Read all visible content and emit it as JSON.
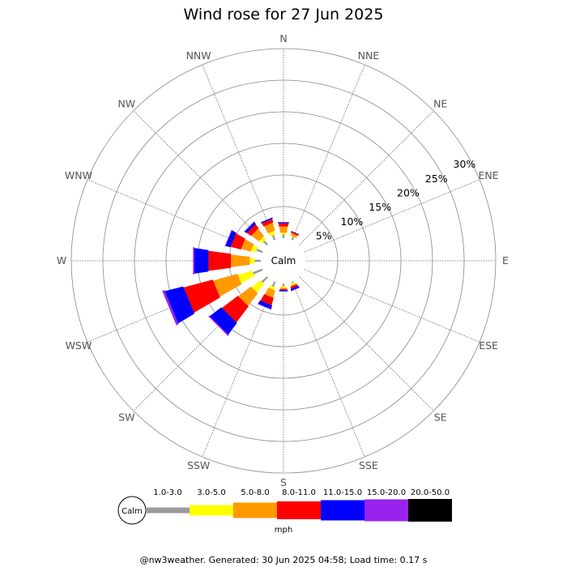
{
  "title": "Wind rose for 27 Jun 2025",
  "footer": "@nw3weather. Generated: 30 Jun 2025 04:58; Load time: 0.17 s",
  "chart_data": {
    "type": "windrose",
    "title": "Wind rose for 27 Jun 2025",
    "unit": "mph",
    "calm_label": "Calm",
    "directions": [
      "N",
      "NNE",
      "NE",
      "ENE",
      "E",
      "ESE",
      "SE",
      "SSE",
      "S",
      "SSW",
      "SW",
      "WSW",
      "W",
      "WNW",
      "NW",
      "NNW"
    ],
    "radial_ticks": [
      5,
      10,
      15,
      20,
      25,
      30
    ],
    "radial_tick_labels": [
      "5%",
      "10%",
      "15%",
      "20%",
      "25%",
      "30%"
    ],
    "radial_max": 30,
    "speed_bins": [
      {
        "label": "1.0-3.0",
        "color": "#999999"
      },
      {
        "label": "3.0-5.0",
        "color": "#ffff00"
      },
      {
        "label": "5.0-8.0",
        "color": "#ff9900"
      },
      {
        "label": "8.0-11.0",
        "color": "#ff0000"
      },
      {
        "label": "11.0-15.0",
        "color": "#0000ff"
      },
      {
        "label": "15.0-20.0",
        "color": "#9922ee"
      },
      {
        "label": "20.0-50.0",
        "color": "#000000"
      }
    ],
    "frequencies": {
      "N": [
        0.6,
        0.3,
        1.0,
        0.5,
        0.2,
        0,
        0
      ],
      "NNE": [
        0.5,
        0.1,
        0.4,
        0.2,
        0.1,
        0,
        0
      ],
      "NE": [
        0,
        0,
        0,
        0,
        0,
        0,
        0
      ],
      "ENE": [
        0,
        0,
        0,
        0,
        0,
        0,
        0
      ],
      "E": [
        0,
        0,
        0,
        0,
        0,
        0,
        0
      ],
      "ESE": [
        0,
        0,
        0,
        0,
        0,
        0,
        0
      ],
      "SE": [
        0,
        0,
        0,
        0,
        0,
        0,
        0
      ],
      "SSE": [
        0.2,
        0.3,
        0.2,
        0.3,
        0.3,
        0.1,
        0
      ],
      "S": [
        0.4,
        0.3,
        0.2,
        0.2,
        0.2,
        0,
        0
      ],
      "SSW": [
        0.8,
        0.5,
        1.2,
        1.2,
        0.6,
        0.1,
        0
      ],
      "SW": [
        1.2,
        1.8,
        2.5,
        3.2,
        2.3,
        0.2,
        0
      ],
      "WSW": [
        1.6,
        2.4,
        4.0,
        4.8,
        3.0,
        0.4,
        0
      ],
      "W": [
        1.0,
        0.8,
        3.0,
        3.6,
        2.3,
        0.2,
        0
      ],
      "WNW": [
        1.0,
        0.8,
        1.6,
        1.7,
        0.8,
        0.1,
        0
      ],
      "NW": [
        0.8,
        0.6,
        1.5,
        0.8,
        0.4,
        0.1,
        0
      ],
      "NNW": [
        0.8,
        0.6,
        1.3,
        0.6,
        0.2,
        0,
        0
      ]
    }
  }
}
